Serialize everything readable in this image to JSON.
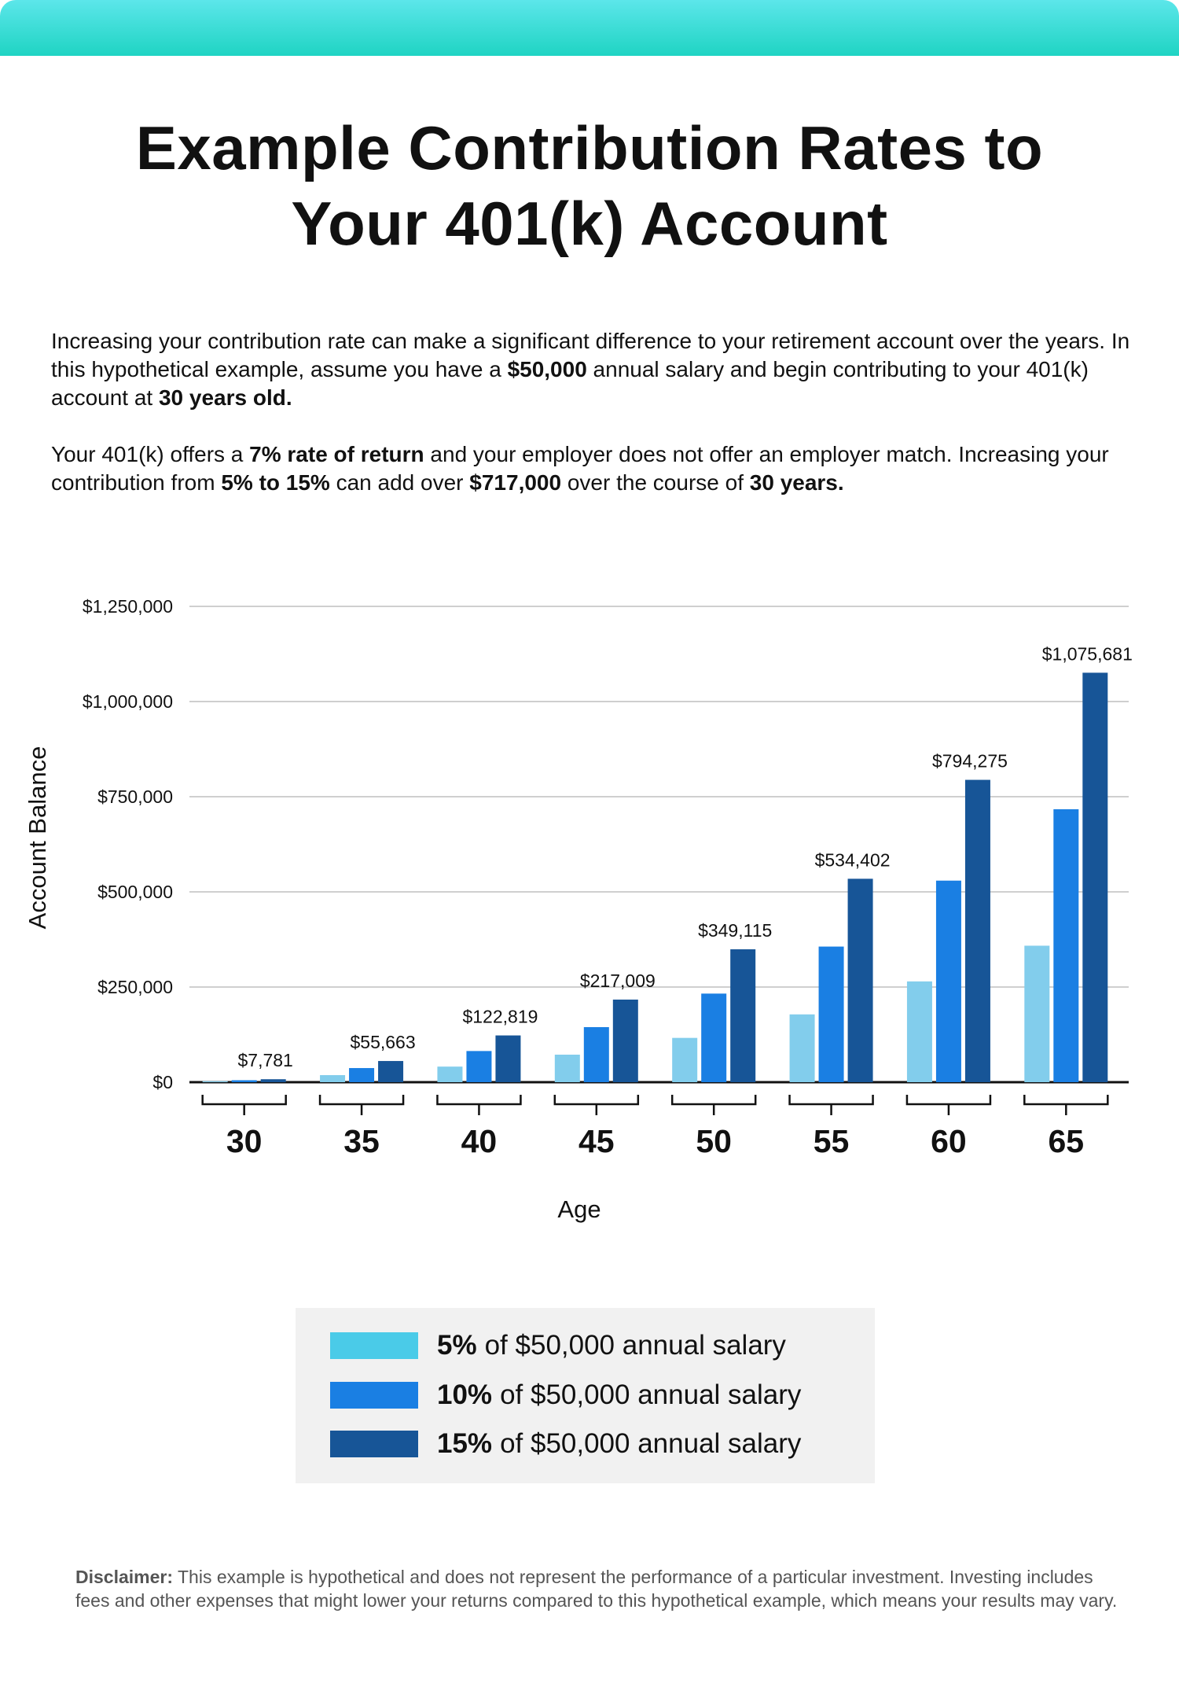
{
  "title_line1": "Example Contribution Rates to",
  "title_line2": "Your 401(k) Account",
  "intro": {
    "p1": [
      "Increasing your contribution rate can make a significant difference to your retirement account over the years. In this hypothetical example, assume you have a ",
      "$50,000",
      " annual salary and begin contributing to your 401(k) account at ",
      "30 years old."
    ],
    "p2": [
      "Your 401(k) offers a ",
      "7% rate of return",
      " and your employer does not offer an employer match. Increasing your contribution from ",
      "5% to 15%",
      " can add over ",
      "$717,000",
      " over the course of ",
      "30 years."
    ]
  },
  "chart_data": {
    "type": "bar",
    "xlabel": "Age",
    "ylabel": "Account Balance",
    "ylim": [
      0,
      1250000
    ],
    "yticks": [
      0,
      250000,
      500000,
      750000,
      1000000,
      1250000
    ],
    "ytick_labels": [
      "$0",
      "$250,000",
      "$500,000",
      "$750,000",
      "$1,000,000",
      "$1,250,000"
    ],
    "grid": true,
    "categories": [
      "30",
      "35",
      "40",
      "45",
      "50",
      "55",
      "60",
      "65"
    ],
    "series": [
      {
        "name": "5% of $50,000 annual salary",
        "color": "#82CDEC",
        "values": [
          2594,
          18554,
          40940,
          72336,
          116372,
          178134,
          264758,
          358560
        ]
      },
      {
        "name": "10% of $50,000 annual salary",
        "color": "#1A7FE3",
        "values": [
          5187,
          37109,
          81879,
          144673,
          232743,
          356268,
          529517,
          717121
        ]
      },
      {
        "name": "15% of $50,000 annual salary",
        "color": "#175597",
        "values": [
          7781,
          55663,
          122819,
          217009,
          349115,
          534402,
          794275,
          1075681
        ]
      }
    ],
    "data_labels": [
      "$7,781",
      "$55,663",
      "$122,819",
      "$217,009",
      "$349,115",
      "$534,402",
      "$794,275",
      "$1,075,681"
    ],
    "legend_placement": "bottom"
  },
  "legend": [
    {
      "bold": "5%",
      "rest": "of $50,000 annual salary",
      "color": "#4ACBE8"
    },
    {
      "bold": "10%",
      "rest": "of $50,000 annual salary",
      "color": "#1A7FE3"
    },
    {
      "bold": "15%",
      "rest": "of $50,000 annual salary",
      "color": "#175597"
    }
  ],
  "disclaimer": {
    "label": "Disclaimer:",
    "text": " This example is hypothetical and does not represent the performance of a particular investment. Investing includes fees and other expenses that might lower your returns compared to this hypothetical example, which means your results may vary."
  }
}
